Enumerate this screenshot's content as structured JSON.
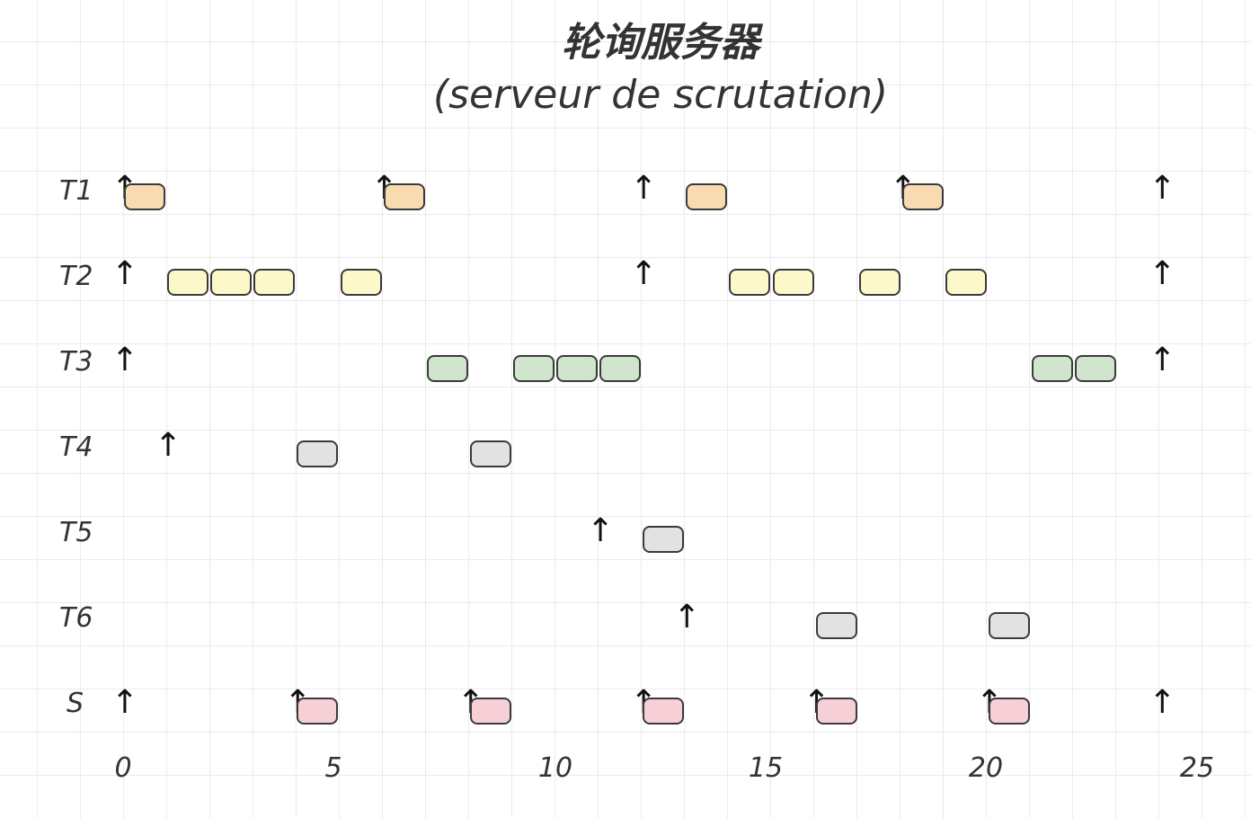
{
  "title": "轮询服务器",
  "subtitle": "(serveur de scrutation)",
  "colors": {
    "T1": "#f8dbb0",
    "T2": "#fdf8c9",
    "T3": "#cfe5cc",
    "T4": "#e2e2e2",
    "T5": "#e2e2e2",
    "T6": "#e2e2e2",
    "S": "#f7cfd6",
    "border": "#3a3a3a"
  },
  "axis": {
    "ticks": [
      "0",
      "5",
      "10",
      "15",
      "20",
      "25"
    ],
    "tick_values": [
      0,
      5,
      10,
      15,
      20,
      25
    ],
    "range": [
      0,
      25
    ]
  },
  "rows": [
    {
      "label": "T1",
      "arrows": [
        0,
        6,
        12,
        18,
        24
      ],
      "jobs": [
        [
          0,
          1
        ],
        [
          6,
          7
        ],
        [
          13,
          14
        ],
        [
          18,
          19
        ]
      ]
    },
    {
      "label": "T2",
      "arrows": [
        0,
        12,
        24
      ],
      "jobs": [
        [
          1,
          2
        ],
        [
          2,
          3
        ],
        [
          3,
          4
        ],
        [
          5,
          6
        ],
        [
          14,
          15
        ],
        [
          15,
          16
        ],
        [
          17,
          18
        ],
        [
          19,
          20
        ]
      ]
    },
    {
      "label": "T3",
      "arrows": [
        0,
        24
      ],
      "jobs": [
        [
          7,
          8
        ],
        [
          9,
          10
        ],
        [
          10,
          11
        ],
        [
          11,
          12
        ],
        [
          21,
          22
        ],
        [
          22,
          23
        ]
      ]
    },
    {
      "label": "T4",
      "arrows": [
        1
      ],
      "jobs": [
        [
          4,
          5
        ],
        [
          8,
          9
        ]
      ]
    },
    {
      "label": "T5",
      "arrows": [
        11
      ],
      "jobs": [
        [
          12,
          13
        ]
      ]
    },
    {
      "label": "T6",
      "arrows": [
        13
      ],
      "jobs": [
        [
          16,
          17
        ],
        [
          20,
          21
        ]
      ]
    },
    {
      "label": "S",
      "arrows": [
        0,
        4,
        8,
        12,
        16,
        20,
        24
      ],
      "jobs": [
        [
          4,
          5
        ],
        [
          8,
          9
        ],
        [
          12,
          13
        ],
        [
          16,
          17
        ],
        [
          20,
          21
        ]
      ]
    }
  ]
}
